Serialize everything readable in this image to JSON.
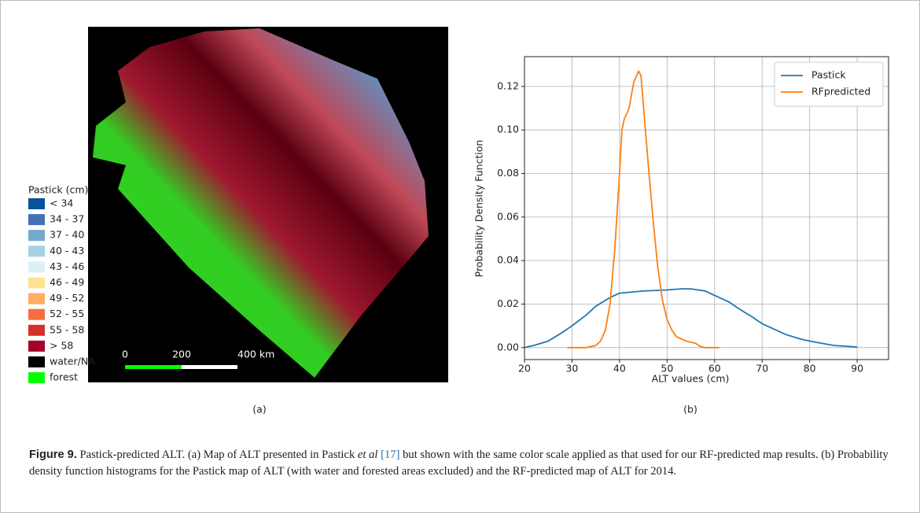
{
  "map": {
    "legend_title": "Pastick (cm)",
    "legend": [
      {
        "label": "< 34",
        "color": "#08519c"
      },
      {
        "label": "34 - 37",
        "color": "#4471b2"
      },
      {
        "label": "37 - 40",
        "color": "#74a9cf"
      },
      {
        "label": "40 - 43",
        "color": "#a6d0e4"
      },
      {
        "label": "43 - 46",
        "color": "#ddf0f8"
      },
      {
        "label": "46 - 49",
        "color": "#fee391"
      },
      {
        "label": "49 - 52",
        "color": "#fdae61"
      },
      {
        "label": "52 - 55",
        "color": "#f46d43"
      },
      {
        "label": "55 - 58",
        "color": "#d73027"
      },
      {
        "label": "> 58",
        "color": "#a50026"
      },
      {
        "label": "water/NA",
        "color": "#000000"
      },
      {
        "label": "forest",
        "color": "#00ff00"
      }
    ],
    "scale_labels": [
      "0",
      "200",
      "400 km"
    ],
    "panel_label": "(a)"
  },
  "chart_data": {
    "type": "line",
    "xlabel": "ALT values (cm)",
    "ylabel": "Probability Density Function",
    "xlim": [
      20,
      96.6
    ],
    "ylim": [
      -0.0055,
      0.1337
    ],
    "xticks": [
      20,
      30,
      40,
      50,
      60,
      70,
      80,
      90
    ],
    "yticks": [
      {
        "value": 0,
        "label": "0.00"
      },
      0.02,
      0.04,
      0.06,
      0.08,
      {
        "value": 0.1,
        "label": "0.10"
      },
      0.12
    ],
    "grid": true,
    "legend_loc": "upper right",
    "series": [
      {
        "name": "Pastick",
        "color": "#1f77b4",
        "x": [
          20,
          22,
          25,
          28,
          30,
          33,
          35,
          38,
          40,
          45,
          50,
          53,
          55,
          58,
          60,
          63,
          65,
          68,
          70,
          73,
          75,
          78,
          80,
          85,
          90
        ],
        "values": [
          0.0,
          0.001,
          0.003,
          0.007,
          0.01,
          0.015,
          0.019,
          0.023,
          0.025,
          0.026,
          0.0265,
          0.027,
          0.027,
          0.026,
          0.024,
          0.021,
          0.018,
          0.014,
          0.011,
          0.008,
          0.006,
          0.004,
          0.003,
          0.001,
          0.0003
        ]
      },
      {
        "name": "RFpredicted",
        "color": "#ff7f0e",
        "x": [
          29,
          33,
          35,
          36,
          37,
          38,
          39,
          40,
          40.5,
          41,
          42,
          43,
          44,
          44.5,
          45,
          46,
          47,
          48,
          49,
          50,
          51,
          52,
          54,
          56,
          57,
          58,
          61
        ],
        "values": [
          0,
          0,
          0.001,
          0.003,
          0.008,
          0.02,
          0.045,
          0.08,
          0.1,
          0.105,
          0.11,
          0.122,
          0.127,
          0.125,
          0.112,
          0.085,
          0.06,
          0.038,
          0.022,
          0.013,
          0.008,
          0.005,
          0.003,
          0.002,
          0.0005,
          0,
          0
        ]
      }
    ],
    "panel_label": "(b)"
  },
  "caption": {
    "label": "Figure 9.",
    "text_1": "Pastick-predicted ALT. (a) Map of ALT presented in Pastick",
    "italic": "et al",
    "ref": "[17]",
    "text_2": "but shown with the same color scale applied as that used for our RF-predicted map results. (b) Probability density function histograms for the Pastick map of ALT (with water and forested areas excluded) and the RF-predicted map of ALT for 2014."
  }
}
